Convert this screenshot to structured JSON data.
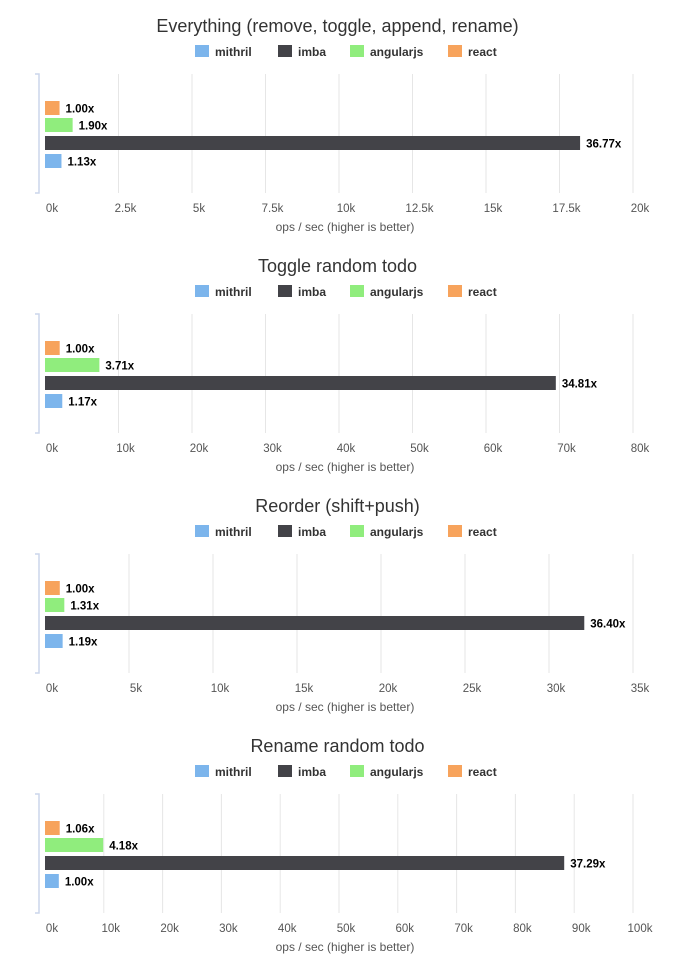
{
  "chart_data": [
    {
      "type": "bar",
      "title": "Everything (remove, toggle, append, rename)",
      "xlabel": "ops / sec (higher is better)",
      "legend": [
        "mithril",
        "imba",
        "angularjs",
        "react"
      ],
      "legend_placement": "top",
      "xlim": [
        0,
        20000
      ],
      "x_ticks": [
        "0k",
        "2.5k",
        "5k",
        "7.5k",
        "10k",
        "12.5k",
        "15k",
        "17.5k",
        "20k"
      ],
      "series": [
        {
          "name": "react",
          "value": 495,
          "label": "1.00x"
        },
        {
          "name": "angularjs",
          "value": 940,
          "label": "1.90x"
        },
        {
          "name": "imba",
          "value": 18200,
          "label": "36.77x"
        },
        {
          "name": "mithril",
          "value": 560,
          "label": "1.13x"
        }
      ]
    },
    {
      "type": "bar",
      "title": "Toggle random todo",
      "xlabel": "ops / sec (higher is better)",
      "legend": [
        "mithril",
        "imba",
        "angularjs",
        "react"
      ],
      "legend_placement": "top",
      "xlim": [
        0,
        80000
      ],
      "x_ticks": [
        "0k",
        "10k",
        "20k",
        "30k",
        "40k",
        "50k",
        "60k",
        "70k",
        "80k"
      ],
      "series": [
        {
          "name": "react",
          "value": 2000,
          "label": "1.00x"
        },
        {
          "name": "angularjs",
          "value": 7400,
          "label": "3.71x"
        },
        {
          "name": "imba",
          "value": 69500,
          "label": "34.81x"
        },
        {
          "name": "mithril",
          "value": 2350,
          "label": "1.17x"
        }
      ]
    },
    {
      "type": "bar",
      "title": "Reorder (shift+push)",
      "xlabel": "ops / sec (higher is better)",
      "legend": [
        "mithril",
        "imba",
        "angularjs",
        "react"
      ],
      "legend_placement": "top",
      "xlim": [
        0,
        35000
      ],
      "x_ticks": [
        "0k",
        "5k",
        "10k",
        "15k",
        "20k",
        "25k",
        "30k",
        "35k"
      ],
      "series": [
        {
          "name": "react",
          "value": 880,
          "label": "1.00x"
        },
        {
          "name": "angularjs",
          "value": 1150,
          "label": "1.31x"
        },
        {
          "name": "imba",
          "value": 32100,
          "label": "36.40x"
        },
        {
          "name": "mithril",
          "value": 1050,
          "label": "1.19x"
        }
      ]
    },
    {
      "type": "bar",
      "title": "Rename random todo",
      "xlabel": "ops / sec (higher is better)",
      "legend": [
        "mithril",
        "imba",
        "angularjs",
        "react"
      ],
      "legend_placement": "top",
      "xlim": [
        0,
        100000
      ],
      "x_ticks": [
        "0k",
        "10k",
        "20k",
        "30k",
        "40k",
        "50k",
        "60k",
        "70k",
        "80k",
        "90k",
        "100k"
      ],
      "series": [
        {
          "name": "react",
          "value": 2500,
          "label": "1.06x"
        },
        {
          "name": "angularjs",
          "value": 9900,
          "label": "4.18x"
        },
        {
          "name": "imba",
          "value": 88300,
          "label": "37.29x"
        },
        {
          "name": "mithril",
          "value": 2350,
          "label": "1.00x"
        }
      ]
    }
  ],
  "colors": {
    "mithril": "#7cb5ec",
    "imba": "#434348",
    "angularjs": "#90ed7d",
    "react": "#f7a35c",
    "grid": "#e6e6e6",
    "axis": "#ccd6eb",
    "text": "#333333",
    "tick": "#555555"
  }
}
